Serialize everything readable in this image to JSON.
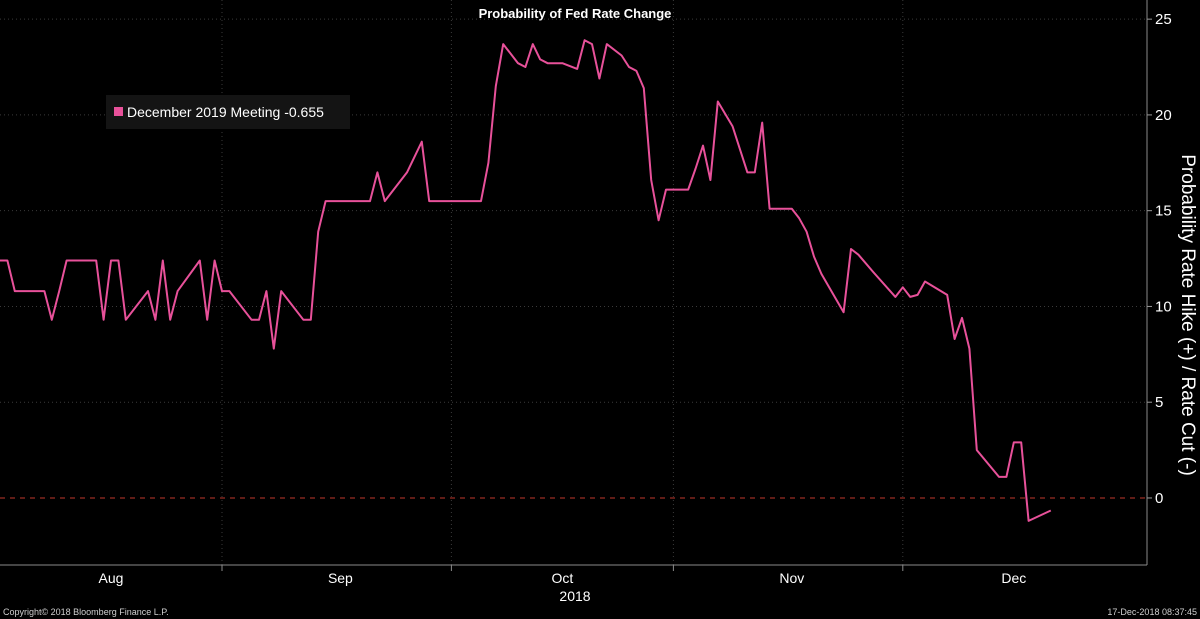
{
  "chart_data": {
    "type": "line",
    "title": "Probability of Fed Rate Change",
    "ylabel": "Probability Rate Hike (+) / Rate Cut (-)",
    "xlabel": "2018",
    "ylim": [
      -3.5,
      26
    ],
    "xlim": [
      "2018-07-17",
      "2018-12-19"
    ],
    "y_ticks": [
      0,
      5,
      10,
      15,
      20,
      25
    ],
    "x_ticks": [
      {
        "date": "2018-08-01",
        "label": "Aug"
      },
      {
        "date": "2018-09-01",
        "label": "Sep"
      },
      {
        "date": "2018-10-01",
        "label": "Oct"
      },
      {
        "date": "2018-11-01",
        "label": "Nov"
      },
      {
        "date": "2018-12-01",
        "label": "Dec"
      }
    ],
    "x_boundaries": [
      "2018-08-16",
      "2018-09-16",
      "2018-10-16",
      "2018-11-16"
    ],
    "grid": true,
    "reference_line": {
      "y": 0,
      "style": "dashed",
      "color": "#c0392b"
    },
    "legend": {
      "position": "top-left",
      "entries": [
        "December 2019 Meeting -0.655"
      ]
    },
    "series": [
      {
        "name": "December 2019 Meeting",
        "color": "#e8519a",
        "points": [
          [
            "2018-07-17",
            12.4
          ],
          [
            "2018-07-18",
            12.4
          ],
          [
            "2018-07-19",
            10.8
          ],
          [
            "2018-07-20",
            10.8
          ],
          [
            "2018-07-23",
            10.8
          ],
          [
            "2018-07-24",
            9.3
          ],
          [
            "2018-07-25",
            10.8
          ],
          [
            "2018-07-26",
            12.4
          ],
          [
            "2018-07-27",
            12.4
          ],
          [
            "2018-07-30",
            12.4
          ],
          [
            "2018-07-31",
            9.3
          ],
          [
            "2018-08-01",
            12.4
          ],
          [
            "2018-08-02",
            12.4
          ],
          [
            "2018-08-03",
            9.3
          ],
          [
            "2018-08-06",
            10.8
          ],
          [
            "2018-08-07",
            9.3
          ],
          [
            "2018-08-08",
            12.4
          ],
          [
            "2018-08-09",
            9.3
          ],
          [
            "2018-08-10",
            10.8
          ],
          [
            "2018-08-13",
            12.4
          ],
          [
            "2018-08-14",
            9.3
          ],
          [
            "2018-08-15",
            12.4
          ],
          [
            "2018-08-16",
            10.8
          ],
          [
            "2018-08-17",
            10.8
          ],
          [
            "2018-08-20",
            9.3
          ],
          [
            "2018-08-21",
            9.3
          ],
          [
            "2018-08-22",
            10.8
          ],
          [
            "2018-08-23",
            7.8
          ],
          [
            "2018-08-24",
            10.8
          ],
          [
            "2018-08-27",
            9.3
          ],
          [
            "2018-08-28",
            9.3
          ],
          [
            "2018-08-29",
            13.9
          ],
          [
            "2018-08-30",
            15.5
          ],
          [
            "2018-08-31",
            15.5
          ],
          [
            "2018-09-04",
            15.5
          ],
          [
            "2018-09-05",
            15.5
          ],
          [
            "2018-09-06",
            17.0
          ],
          [
            "2018-09-07",
            15.5
          ],
          [
            "2018-09-10",
            17.0
          ],
          [
            "2018-09-12",
            18.6
          ],
          [
            "2018-09-13",
            15.5
          ],
          [
            "2018-09-14",
            15.5
          ],
          [
            "2018-09-17",
            15.5
          ],
          [
            "2018-09-18",
            15.5
          ],
          [
            "2018-09-19",
            15.5
          ],
          [
            "2018-09-20",
            15.5
          ],
          [
            "2018-09-21",
            17.5
          ],
          [
            "2018-09-22",
            21.5
          ],
          [
            "2018-09-23",
            23.7
          ],
          [
            "2018-09-25",
            22.7
          ],
          [
            "2018-09-26",
            22.5
          ],
          [
            "2018-09-27",
            23.7
          ],
          [
            "2018-09-28",
            22.9
          ],
          [
            "2018-09-29",
            22.7
          ],
          [
            "2018-10-01",
            22.7
          ],
          [
            "2018-10-03",
            22.4
          ],
          [
            "2018-10-04",
            23.9
          ],
          [
            "2018-10-05",
            23.7
          ],
          [
            "2018-10-06",
            21.9
          ],
          [
            "2018-10-07",
            23.7
          ],
          [
            "2018-10-09",
            23.1
          ],
          [
            "2018-10-10",
            22.5
          ],
          [
            "2018-10-11",
            22.3
          ],
          [
            "2018-10-12",
            21.4
          ],
          [
            "2018-10-13",
            16.6
          ],
          [
            "2018-10-14",
            14.5
          ],
          [
            "2018-10-15",
            16.1
          ],
          [
            "2018-10-17",
            16.1
          ],
          [
            "2018-10-18",
            16.1
          ],
          [
            "2018-10-19",
            17.2
          ],
          [
            "2018-10-20",
            18.4
          ],
          [
            "2018-10-21",
            16.6
          ],
          [
            "2018-10-22",
            20.7
          ],
          [
            "2018-10-24",
            19.4
          ],
          [
            "2018-10-25",
            18.2
          ],
          [
            "2018-10-26",
            17.0
          ],
          [
            "2018-10-27",
            17.0
          ],
          [
            "2018-10-28",
            19.6
          ],
          [
            "2018-10-29",
            15.1
          ],
          [
            "2018-10-31",
            15.1
          ],
          [
            "2018-11-01",
            15.1
          ],
          [
            "2018-11-02",
            14.6
          ],
          [
            "2018-11-03",
            13.9
          ],
          [
            "2018-11-04",
            12.6
          ],
          [
            "2018-11-05",
            11.7
          ],
          [
            "2018-11-08",
            9.7
          ],
          [
            "2018-11-09",
            13.0
          ],
          [
            "2018-11-10",
            12.7
          ],
          [
            "2018-11-12",
            11.8
          ],
          [
            "2018-11-15",
            10.5
          ],
          [
            "2018-11-16",
            11.0
          ],
          [
            "2018-11-17",
            10.5
          ],
          [
            "2018-11-18",
            10.6
          ],
          [
            "2018-11-19",
            11.3
          ],
          [
            "2018-11-22",
            10.6
          ],
          [
            "2018-11-23",
            8.3
          ],
          [
            "2018-11-24",
            9.4
          ],
          [
            "2018-11-25",
            7.8
          ],
          [
            "2018-11-26",
            2.5
          ],
          [
            "2018-11-29",
            1.1
          ],
          [
            "2018-11-30",
            1.1
          ],
          [
            "2018-12-01",
            2.9
          ],
          [
            "2018-12-02",
            2.9
          ],
          [
            "2018-12-03",
            -1.2
          ],
          [
            "2018-12-06",
            -0.655
          ]
        ]
      }
    ]
  },
  "footer": {
    "copyright": "Copyright© 2018 Bloomberg Finance L.P.",
    "timestamp": "17-Dec-2018 08:37:45"
  }
}
